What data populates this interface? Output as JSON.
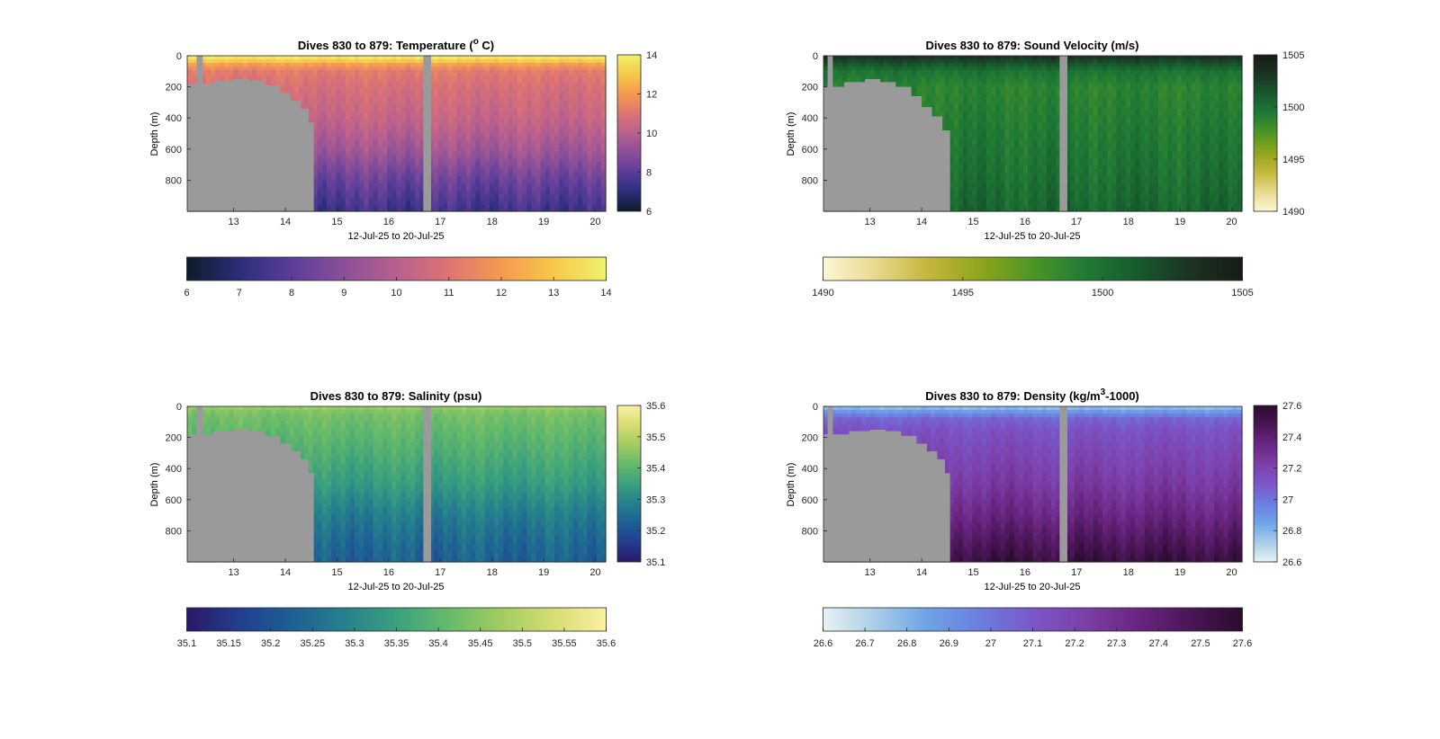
{
  "figure": {
    "background": "#ffffff",
    "mask_color": "#9a9a9a",
    "axis_color": "#262626"
  },
  "chart_data": [
    {
      "id": "temperature",
      "type": "heatmap",
      "title_main": "Dives 830 to 879: Temperature (",
      "title_sup": "o",
      "title_tail": " C)",
      "xlabel": "12-Jul-25 to 20-Jul-25",
      "ylabel": "Depth (m)",
      "x_ticks": [
        "13",
        "14",
        "15",
        "16",
        "17",
        "18",
        "19",
        "20"
      ],
      "x_tick_values": [
        13,
        14,
        15,
        16,
        17,
        18,
        19,
        20
      ],
      "xlim": [
        12.1,
        20.2
      ],
      "y_ticks": [
        "0",
        "200",
        "400",
        "600",
        "800"
      ],
      "y_tick_values": [
        0,
        200,
        400,
        600,
        800
      ],
      "ylim": [
        0,
        1000
      ],
      "colorbar_range": [
        6,
        14
      ],
      "colorbar_ticks": [
        "6",
        "8",
        "10",
        "12",
        "14"
      ],
      "colorbar_tick_values": [
        6,
        8,
        10,
        12,
        14
      ],
      "horizontal_colorbar_ticks": [
        "6",
        "7",
        "8",
        "9",
        "10",
        "11",
        "12",
        "13",
        "14"
      ],
      "horizontal_colorbar_tick_values": [
        6,
        7,
        8,
        9,
        10,
        11,
        12,
        13,
        14
      ],
      "colormap": [
        "#0d1b2a",
        "#2b2e7a",
        "#5a3d9a",
        "#8b4f98",
        "#b8608e",
        "#dd7473",
        "#f59a4f",
        "#f7c74a",
        "#eef26b"
      ],
      "profile": [
        [
          0,
          14
        ],
        [
          30,
          13.2
        ],
        [
          60,
          12.0
        ],
        [
          100,
          11.2
        ],
        [
          200,
          10.8
        ],
        [
          400,
          10.3
        ],
        [
          600,
          9.5
        ],
        [
          800,
          8.3
        ],
        [
          1000,
          7.4
        ]
      ],
      "bottom_depth_profile": [
        [
          12.1,
          180
        ],
        [
          12.6,
          160
        ],
        [
          13.0,
          150
        ],
        [
          13.3,
          160
        ],
        [
          13.6,
          190
        ],
        [
          13.9,
          240
        ],
        [
          14.1,
          290
        ],
        [
          14.3,
          340
        ],
        [
          14.45,
          430
        ],
        [
          14.55,
          600
        ]
      ],
      "bottom_end_x": 14.55,
      "data_gaps": [
        [
          12.28,
          12.4
        ],
        [
          16.67,
          16.82
        ]
      ]
    },
    {
      "id": "sound_velocity",
      "type": "heatmap",
      "title_main": "Dives 830 to 879: Sound Velocity (m/s)",
      "title_sup": "",
      "title_tail": "",
      "xlabel": "12-Jul-25 to 20-Jul-25",
      "ylabel": "Depth (m)",
      "x_ticks": [
        "13",
        "14",
        "15",
        "16",
        "17",
        "18",
        "19",
        "20"
      ],
      "x_tick_values": [
        13,
        14,
        15,
        16,
        17,
        18,
        19,
        20
      ],
      "xlim": [
        12.1,
        20.2
      ],
      "y_ticks": [
        "0",
        "200",
        "400",
        "600",
        "800"
      ],
      "y_tick_values": [
        0,
        200,
        400,
        600,
        800
      ],
      "ylim": [
        0,
        1000
      ],
      "colorbar_range": [
        1490,
        1505
      ],
      "colorbar_ticks": [
        "1490",
        "1495",
        "1500",
        "1505"
      ],
      "colorbar_tick_values": [
        1490,
        1495,
        1500,
        1505
      ],
      "horizontal_colorbar_ticks": [
        "1490",
        "1495",
        "1500",
        "1505"
      ],
      "horizontal_colorbar_tick_values": [
        1490,
        1495,
        1500,
        1505
      ],
      "colormap": [
        "#fdf7d4",
        "#e8d98f",
        "#c4b63c",
        "#8ea51a",
        "#4d9626",
        "#1f7a35",
        "#175a2e",
        "#1c3322",
        "#151c16"
      ],
      "profile": [
        [
          0,
          1503.5
        ],
        [
          40,
          1502.0
        ],
        [
          100,
          1499.8
        ],
        [
          200,
          1498.8
        ],
        [
          400,
          1499.2
        ],
        [
          600,
          1499.6
        ],
        [
          800,
          1500.0
        ],
        [
          1000,
          1500.6
        ]
      ],
      "bottom_depth_profile": [
        [
          12.1,
          200
        ],
        [
          12.5,
          170
        ],
        [
          12.9,
          150
        ],
        [
          13.2,
          170
        ],
        [
          13.5,
          200
        ],
        [
          13.8,
          260
        ],
        [
          14.0,
          330
        ],
        [
          14.2,
          390
        ],
        [
          14.4,
          480
        ],
        [
          14.55,
          600
        ]
      ],
      "bottom_end_x": 14.55,
      "data_gaps": [
        [
          12.18,
          12.28
        ],
        [
          16.67,
          16.82
        ]
      ]
    },
    {
      "id": "salinity",
      "type": "heatmap",
      "title_main": "Dives 830 to 879: Salinity (psu)",
      "title_sup": "",
      "title_tail": "",
      "xlabel": "12-Jul-25 to 20-Jul-25",
      "ylabel": "Depth (m)",
      "x_ticks": [
        "13",
        "14",
        "15",
        "16",
        "17",
        "18",
        "19",
        "20"
      ],
      "x_tick_values": [
        13,
        14,
        15,
        16,
        17,
        18,
        19,
        20
      ],
      "xlim": [
        12.1,
        20.2
      ],
      "y_ticks": [
        "0",
        "200",
        "400",
        "600",
        "800"
      ],
      "y_tick_values": [
        0,
        200,
        400,
        600,
        800
      ],
      "ylim": [
        0,
        1000
      ],
      "colorbar_range": [
        35.1,
        35.6
      ],
      "colorbar_ticks": [
        "35.1",
        "35.2",
        "35.3",
        "35.4",
        "35.5",
        "35.6"
      ],
      "colorbar_tick_values": [
        35.1,
        35.2,
        35.3,
        35.4,
        35.5,
        35.6
      ],
      "horizontal_colorbar_ticks": [
        "35.1",
        "35.15",
        "35.2",
        "35.25",
        "35.3",
        "35.35",
        "35.4",
        "35.45",
        "35.5",
        "35.55",
        "35.6"
      ],
      "horizontal_colorbar_tick_values": [
        35.1,
        35.15,
        35.2,
        35.25,
        35.3,
        35.35,
        35.4,
        35.45,
        35.5,
        35.55,
        35.6
      ],
      "colormap": [
        "#2a1866",
        "#233d8f",
        "#1d5f94",
        "#26808c",
        "#3aa07e",
        "#66ba6a",
        "#a2cc62",
        "#d6dd72",
        "#fbf0a2"
      ],
      "profile": [
        [
          0,
          35.47
        ],
        [
          50,
          35.43
        ],
        [
          150,
          35.41
        ],
        [
          300,
          35.38
        ],
        [
          500,
          35.34
        ],
        [
          700,
          35.28
        ],
        [
          900,
          35.24
        ],
        [
          1000,
          35.23
        ]
      ],
      "bottom_depth_profile": [
        [
          12.1,
          180
        ],
        [
          12.6,
          160
        ],
        [
          13.0,
          150
        ],
        [
          13.3,
          160
        ],
        [
          13.6,
          190
        ],
        [
          13.9,
          240
        ],
        [
          14.1,
          290
        ],
        [
          14.3,
          340
        ],
        [
          14.45,
          430
        ],
        [
          14.55,
          600
        ]
      ],
      "bottom_end_x": 14.55,
      "data_gaps": [
        [
          12.28,
          12.4
        ],
        [
          16.67,
          16.82
        ]
      ]
    },
    {
      "id": "density",
      "type": "heatmap",
      "title_main": "Dives 830 to 879: Density (kg/m",
      "title_sup": "3",
      "title_tail": "-1000)",
      "xlabel": "12-Jul-25 to 20-Jul-25",
      "ylabel": "Depth (m)",
      "x_ticks": [
        "13",
        "14",
        "15",
        "16",
        "17",
        "18",
        "19",
        "20"
      ],
      "x_tick_values": [
        13,
        14,
        15,
        16,
        17,
        18,
        19,
        20
      ],
      "xlim": [
        12.1,
        20.2
      ],
      "y_ticks": [
        "0",
        "200",
        "400",
        "600",
        "800"
      ],
      "y_tick_values": [
        0,
        200,
        400,
        600,
        800
      ],
      "ylim": [
        0,
        1000
      ],
      "colorbar_range": [
        26.6,
        27.6
      ],
      "colorbar_ticks": [
        "26.6",
        "26.8",
        "27",
        "27.2",
        "27.4",
        "27.6"
      ],
      "colorbar_tick_values": [
        26.6,
        26.8,
        27,
        27.2,
        27.4,
        27.6
      ],
      "horizontal_colorbar_ticks": [
        "26.6",
        "26.7",
        "26.8",
        "26.9",
        "27",
        "27.1",
        "27.2",
        "27.3",
        "27.4",
        "27.5",
        "27.6"
      ],
      "horizontal_colorbar_tick_values": [
        26.6,
        26.7,
        26.8,
        26.9,
        27,
        27.1,
        27.2,
        27.3,
        27.4,
        27.5,
        27.6
      ],
      "colormap": [
        "#e8f2f2",
        "#a9cde8",
        "#6da3e6",
        "#6c7ddf",
        "#7a57c9",
        "#7c3fa8",
        "#6a2581",
        "#4a1657",
        "#2a0c2c"
      ],
      "profile": [
        [
          0,
          26.75
        ],
        [
          40,
          26.9
        ],
        [
          80,
          27.05
        ],
        [
          150,
          27.12
        ],
        [
          300,
          27.18
        ],
        [
          500,
          27.25
        ],
        [
          700,
          27.35
        ],
        [
          850,
          27.45
        ],
        [
          1000,
          27.55
        ]
      ],
      "bottom_depth_profile": [
        [
          12.1,
          180
        ],
        [
          12.6,
          160
        ],
        [
          13.0,
          150
        ],
        [
          13.3,
          160
        ],
        [
          13.6,
          190
        ],
        [
          13.9,
          240
        ],
        [
          14.1,
          290
        ],
        [
          14.3,
          340
        ],
        [
          14.45,
          430
        ],
        [
          14.55,
          600
        ]
      ],
      "bottom_end_x": 14.55,
      "data_gaps": [
        [
          12.18,
          12.28
        ],
        [
          16.67,
          16.82
        ]
      ]
    }
  ]
}
